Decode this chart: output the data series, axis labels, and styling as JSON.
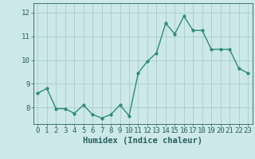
{
  "xlabel": "Humidex (Indice chaleur)",
  "x": [
    0,
    1,
    2,
    3,
    4,
    5,
    6,
    7,
    8,
    9,
    10,
    11,
    12,
    13,
    14,
    15,
    16,
    17,
    18,
    19,
    20,
    21,
    22,
    23
  ],
  "y": [
    8.6,
    8.8,
    7.95,
    7.95,
    7.75,
    8.1,
    7.7,
    7.55,
    7.7,
    8.1,
    7.65,
    9.45,
    9.95,
    10.3,
    11.55,
    11.1,
    11.85,
    11.25,
    11.25,
    10.45,
    10.45,
    10.45,
    9.65,
    9.45
  ],
  "line_color": "#2e8b7a",
  "marker_size": 2.5,
  "line_width": 1.0,
  "bg_color": "#cce8e8",
  "grid_color": "#aacccc",
  "text_color": "#2a5f5f",
  "ylim": [
    7.3,
    12.4
  ],
  "xlim": [
    -0.5,
    23.5
  ],
  "yticks": [
    8,
    9,
    10,
    11,
    12
  ],
  "xticks": [
    0,
    1,
    2,
    3,
    4,
    5,
    6,
    7,
    8,
    9,
    10,
    11,
    12,
    13,
    14,
    15,
    16,
    17,
    18,
    19,
    20,
    21,
    22,
    23
  ],
  "xlabel_fontsize": 7.5,
  "tick_fontsize": 6.5
}
